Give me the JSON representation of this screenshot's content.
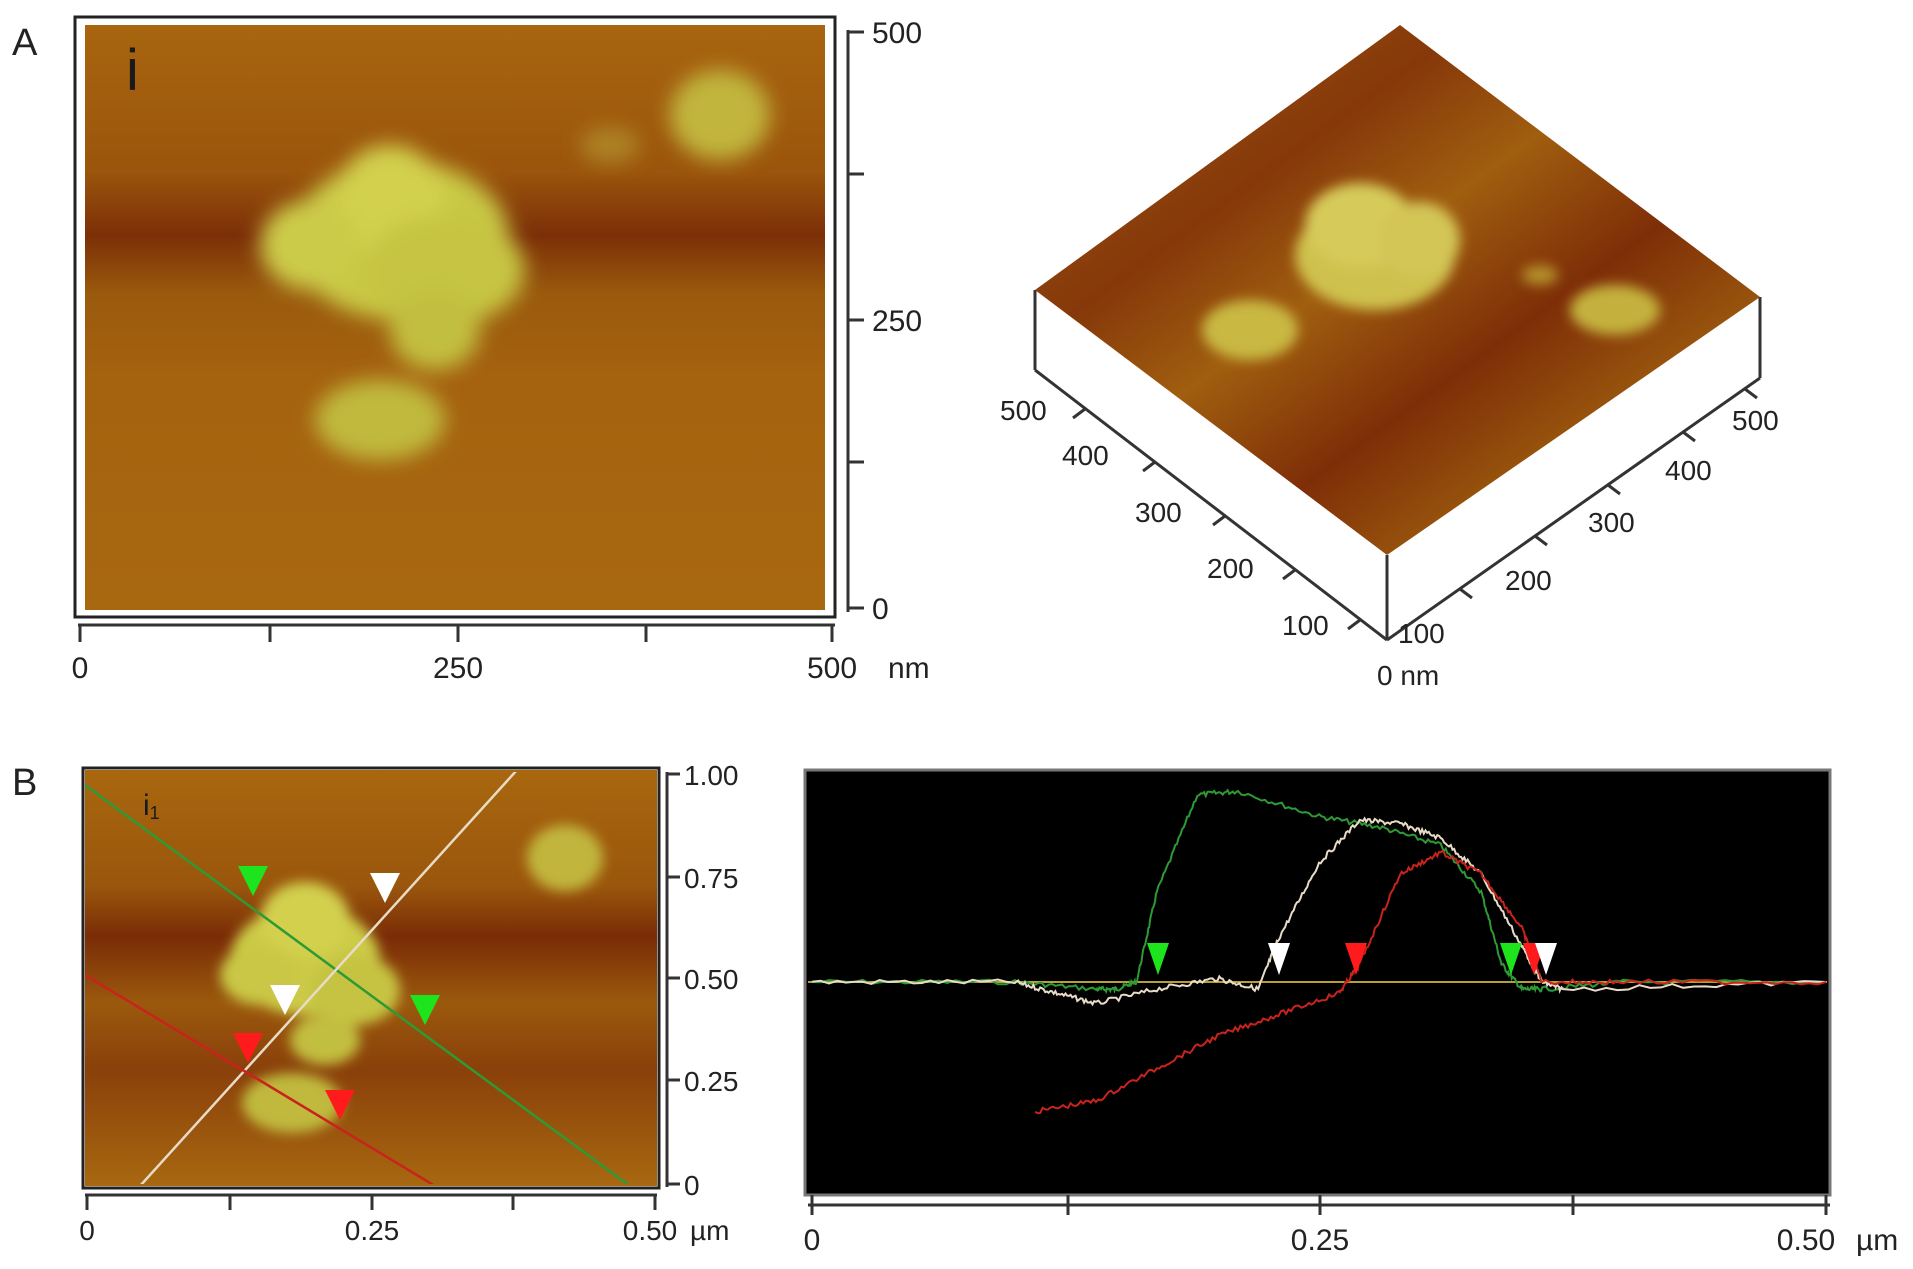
{
  "panels": {
    "A": {
      "label": "A",
      "inset_label": "i",
      "map": {
        "y_ticks": [
          "0",
          "250",
          "500"
        ],
        "x_ticks": [
          "0",
          "250",
          "500"
        ],
        "x_unit": "nm"
      },
      "surface_3d": {
        "left_axis_ticks": [
          "100",
          "200",
          "300",
          "400",
          "500"
        ],
        "right_axis_ticks": [
          "100",
          "200",
          "300",
          "400",
          "500"
        ],
        "origin_label": "0 nm"
      }
    },
    "B": {
      "label": "B",
      "inset_label": "i",
      "inset_subscript": "1",
      "map": {
        "y_ticks": [
          "0",
          "0.25",
          "0.50",
          "0.75",
          "1.00"
        ],
        "x_ticks": [
          "0",
          "0.25",
          "0.50"
        ],
        "x_unit": "µm"
      },
      "profile": {
        "x_ticks": [
          "0",
          "0.25",
          "0.50"
        ],
        "x_unit": "µm",
        "background": "#000000"
      }
    }
  },
  "colors": {
    "substrate": "#a0600e",
    "substrate_dark": "#7a2c05",
    "particle": "#cfd04a",
    "green_line": "#2e9a35",
    "white_line": "#e8dcc8",
    "red_line": "#c8231c",
    "marker_green": "#1ee41e",
    "marker_red": "#ff1b1b",
    "marker_white": "#ffffff"
  },
  "chart_data": {
    "type": "line",
    "x_unit": "µm",
    "xlim": [
      0,
      0.5
    ],
    "series": [
      {
        "color": "green",
        "x": [
          0,
          0.1,
          0.14,
          0.15,
          0.16,
          0.17,
          0.19,
          0.21,
          0.25,
          0.28,
          0.31,
          0.33,
          0.34,
          0.35,
          0.36,
          0.4,
          0.5
        ],
        "y": [
          0,
          0,
          -0.02,
          -0.02,
          0.0,
          0.25,
          0.52,
          0.53,
          0.46,
          0.43,
          0.38,
          0.25,
          0.05,
          -0.02,
          -0.02,
          0.0,
          0.0
        ]
      },
      {
        "color": "white",
        "x": [
          0,
          0.1,
          0.12,
          0.14,
          0.17,
          0.2,
          0.22,
          0.23,
          0.25,
          0.27,
          0.29,
          0.31,
          0.33,
          0.35,
          0.36,
          0.37,
          0.5
        ],
        "y": [
          0,
          0,
          -0.03,
          -0.06,
          -0.02,
          0.01,
          -0.02,
          0.12,
          0.33,
          0.45,
          0.44,
          0.4,
          0.3,
          0.1,
          0.0,
          -0.02,
          0.0
        ]
      },
      {
        "color": "red",
        "x": [
          0.11,
          0.14,
          0.17,
          0.2,
          0.23,
          0.26,
          0.27,
          0.29,
          0.31,
          0.33,
          0.35,
          0.36,
          0.4,
          0.5
        ],
        "y": [
          -0.36,
          -0.33,
          -0.24,
          -0.15,
          -0.09,
          -0.03,
          0.05,
          0.3,
          0.36,
          0.3,
          0.15,
          0.0,
          0.0,
          0.0
        ]
      }
    ]
  }
}
